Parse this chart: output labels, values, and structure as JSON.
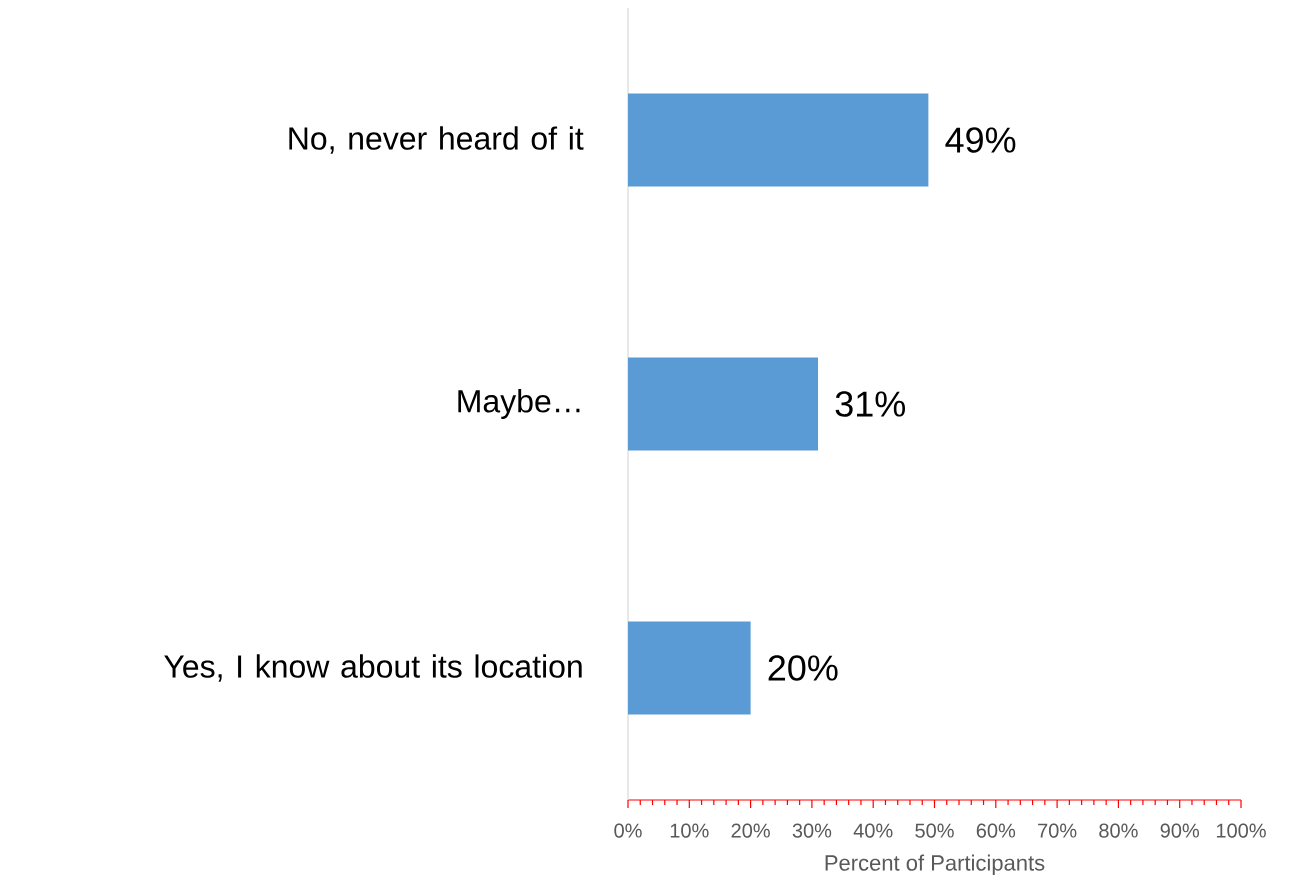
{
  "chart_data": {
    "type": "bar",
    "orientation": "horizontal",
    "categories": [
      "No, never heard of it",
      "Maybe…",
      "Yes, I know about its location"
    ],
    "values": [
      49,
      31,
      20
    ],
    "color": "#5b9bd5",
    "value_labels": [
      "49%",
      "31%",
      "20%"
    ],
    "xlabel": "Percent of Participants",
    "xlim": [
      0,
      100
    ],
    "xticks": [
      {
        "value": 0,
        "label": "0%"
      },
      {
        "value": 2,
        "label": null
      },
      {
        "value": 4,
        "label": null
      },
      {
        "value": 6,
        "label": null
      },
      {
        "value": 8,
        "label": null
      },
      {
        "value": 10,
        "label": "10%"
      },
      {
        "value": 12,
        "label": null
      },
      {
        "value": 14,
        "label": null
      },
      {
        "value": 16,
        "label": null
      },
      {
        "value": 18,
        "label": null
      },
      {
        "value": 20,
        "label": "20%"
      },
      {
        "value": 22,
        "label": null
      },
      {
        "value": 24,
        "label": null
      },
      {
        "value": 26,
        "label": null
      },
      {
        "value": 28,
        "label": null
      },
      {
        "value": 30,
        "label": "30%"
      },
      {
        "value": 32,
        "label": null
      },
      {
        "value": 34,
        "label": null
      },
      {
        "value": 36,
        "label": null
      },
      {
        "value": 38,
        "label": null
      },
      {
        "value": 40,
        "label": "40%"
      },
      {
        "value": 42,
        "label": null
      },
      {
        "value": 44,
        "label": null
      },
      {
        "value": 46,
        "label": null
      },
      {
        "value": 48,
        "label": null
      },
      {
        "value": 50,
        "label": "50%"
      },
      {
        "value": 52,
        "label": null
      },
      {
        "value": 54,
        "label": null
      },
      {
        "value": 56,
        "label": null
      },
      {
        "value": 58,
        "label": null
      },
      {
        "value": 60,
        "label": "60%"
      },
      {
        "value": 62,
        "label": null
      },
      {
        "value": 64,
        "label": null
      },
      {
        "value": 66,
        "label": null
      },
      {
        "value": 68,
        "label": null
      },
      {
        "value": 70,
        "label": "70%"
      },
      {
        "value": 72,
        "label": null
      },
      {
        "value": 74,
        "label": null
      },
      {
        "value": 76,
        "label": null
      },
      {
        "value": 78,
        "label": null
      },
      {
        "value": 80,
        "label": "80%"
      },
      {
        "value": 82,
        "label": null
      },
      {
        "value": 84,
        "label": null
      },
      {
        "value": 86,
        "label": null
      },
      {
        "value": 88,
        "label": null
      },
      {
        "value": 90,
        "label": "90%"
      },
      {
        "value": 92,
        "label": null
      },
      {
        "value": 94,
        "label": null
      },
      {
        "value": 96,
        "label": null
      },
      {
        "value": 98,
        "label": null
      },
      {
        "value": 100,
        "label": "100%"
      }
    ]
  }
}
